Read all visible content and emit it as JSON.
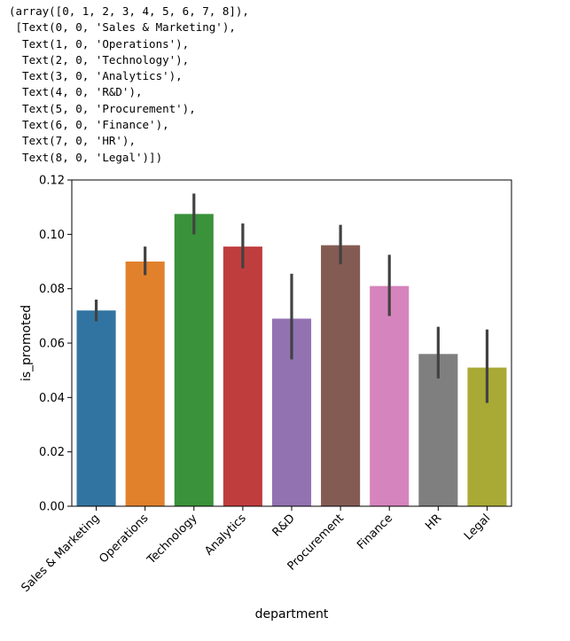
{
  "console_output": {
    "lines": [
      "(array([0, 1, 2, 3, 4, 5, 6, 7, 8]),",
      " [Text(0, 0, 'Sales & Marketing'),",
      "  Text(1, 0, 'Operations'),",
      "  Text(2, 0, 'Technology'),",
      "  Text(3, 0, 'Analytics'),",
      "  Text(4, 0, 'R&D'),",
      "  Text(5, 0, 'Procurement'),",
      "  Text(6, 0, 'Finance'),",
      "  Text(7, 0, 'HR'),",
      "  Text(8, 0, 'Legal')])"
    ]
  },
  "chart_data": {
    "type": "bar",
    "xlabel": "department",
    "ylabel": "is_promoted",
    "ylim": [
      0,
      0.12
    ],
    "yticks": [
      "0.00",
      "0.02",
      "0.04",
      "0.06",
      "0.08",
      "0.10",
      "0.12"
    ],
    "grid": false,
    "categories": [
      "Sales & Marketing",
      "Operations",
      "Technology",
      "Analytics",
      "R&D",
      "Procurement",
      "Finance",
      "HR",
      "Legal"
    ],
    "values": [
      0.072,
      0.09,
      0.1075,
      0.0955,
      0.069,
      0.096,
      0.081,
      0.056,
      0.051
    ],
    "error_low": [
      0.068,
      0.085,
      0.1,
      0.0875,
      0.054,
      0.089,
      0.07,
      0.047,
      0.038
    ],
    "error_high": [
      0.076,
      0.0955,
      0.115,
      0.104,
      0.0855,
      0.1035,
      0.0925,
      0.066,
      0.065
    ],
    "colors": [
      "#3274a1",
      "#e1812c",
      "#3a923a",
      "#c03d3e",
      "#9372b2",
      "#845b53",
      "#d684bd",
      "#7f7f7f",
      "#a9aa35"
    ],
    "errorbar_color": "#424242"
  }
}
